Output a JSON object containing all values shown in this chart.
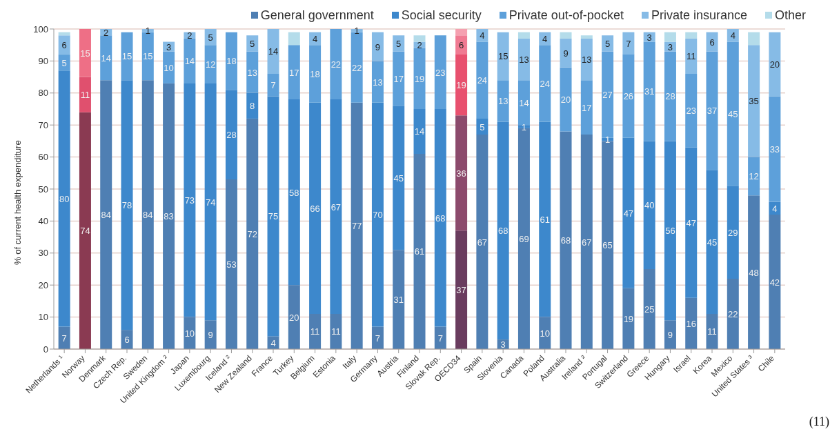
{
  "chart_data": {
    "type": "bar",
    "stacked": true,
    "ylabel": "% of current health expenditure",
    "legend": "top",
    "grid": "y",
    "ylim": [
      0,
      100
    ],
    "yticks": [
      0,
      10,
      20,
      30,
      40,
      50,
      60,
      70,
      80,
      90,
      100
    ],
    "annotations": [
      "(11)"
    ],
    "categories": [
      "Netherlands ¹",
      "Norway",
      "Denmark",
      "Czech Rep.",
      "Sweden",
      "United Kingdom ²",
      "Japan",
      "Luxembourg",
      "Iceland ²",
      "New Zealand",
      "France",
      "Turkey",
      "Belgium",
      "Estonia",
      "Italy",
      "Germany",
      "Austria",
      "Finland",
      "Slovak Rep.",
      "OECD34",
      "Spain",
      "Slovenia",
      "Canada",
      "Poland",
      "Australia",
      "Ireland ²",
      "Portugal",
      "Switzerland",
      "Greece",
      "Hungary",
      "Israel",
      "Korea",
      "Mexico",
      "United States ³",
      "Chile"
    ],
    "series": [
      {
        "name": "General government",
        "color": "#4f7fb3",
        "colors": [
          "#4f7fb3",
          "#8a3a52",
          "#4f7fb3",
          "#4f7fb3",
          "#4f7fb3",
          "#4f7fb3",
          "#4f7fb3",
          "#4f7fb3",
          "#4f7fb3",
          "#4f7fb3",
          "#4f7fb3",
          "#4f7fb3",
          "#4f7fb3",
          "#4f7fb3",
          "#4f7fb3",
          "#4f7fb3",
          "#4f7fb3",
          "#4f7fb3",
          "#4f7fb3",
          "#6a3c5e",
          "#4f7fb3",
          "#4f7fb3",
          "#4f7fb3",
          "#4f7fb3",
          "#4f7fb3",
          "#4f7fb3",
          "#4f7fb3",
          "#4f7fb3",
          "#4f7fb3",
          "#4f7fb3",
          "#4f7fb3",
          "#4f7fb3",
          "#4f7fb3",
          "#4f7fb3",
          "#4f7fb3"
        ],
        "values": [
          7,
          74,
          84,
          6,
          84,
          83,
          10,
          9,
          53,
          72,
          4,
          20,
          11,
          11,
          77,
          7,
          31,
          61,
          7,
          37,
          67,
          3,
          69,
          10,
          68,
          67,
          65,
          19,
          25,
          9,
          16,
          11,
          22,
          48,
          42
        ],
        "value_labels": [
          "7",
          "74",
          "84",
          "6",
          "84",
          "83",
          "10",
          "9",
          "53",
          "72",
          "4",
          "20",
          "11",
          "11",
          "77",
          "7",
          "31",
          "61",
          "7",
          "37",
          "67",
          "3",
          "69",
          "10",
          "68",
          "67",
          "65",
          "19",
          "25",
          "9",
          "16",
          "11",
          "22",
          "48",
          "42"
        ]
      },
      {
        "name": "Social security",
        "color": "#3d88cc",
        "colors": [
          "#3d88cc",
          "#e0506e",
          "#3d88cc",
          "#3d88cc",
          "#3d88cc",
          "#3d88cc",
          "#3d88cc",
          "#3d88cc",
          "#3d88cc",
          "#3d88cc",
          "#3d88cc",
          "#3d88cc",
          "#3d88cc",
          "#3d88cc",
          "#3d88cc",
          "#3d88cc",
          "#3d88cc",
          "#3d88cc",
          "#3d88cc",
          "#8c4a6c",
          "#3d88cc",
          "#3d88cc",
          "#3d88cc",
          "#3d88cc",
          "#3d88cc",
          "#3d88cc",
          "#3d88cc",
          "#3d88cc",
          "#3d88cc",
          "#3d88cc",
          "#3d88cc",
          "#3d88cc",
          "#3d88cc",
          "#3d88cc",
          "#3d88cc"
        ],
        "values": [
          80,
          11,
          null,
          78,
          null,
          null,
          73,
          74,
          28,
          8,
          75,
          58,
          66,
          67,
          null,
          70,
          45,
          14,
          68,
          36,
          5,
          68,
          1,
          61,
          null,
          null,
          1,
          47,
          40,
          56,
          47,
          45,
          29,
          null,
          4
        ],
        "value_labels": [
          "80",
          "11",
          null,
          "78",
          null,
          null,
          "73",
          "74",
          "28",
          "8",
          "75",
          "58",
          "66",
          "67",
          null,
          "70",
          "45",
          "14",
          "68",
          "36",
          "5",
          "68",
          "1",
          "61",
          null,
          null,
          "1",
          "47",
          "40",
          "56",
          "47",
          "45",
          "29",
          null,
          "4"
        ]
      },
      {
        "name": "Private out-of-pocket",
        "color": "#5da0da",
        "colors": [
          "#5da0da",
          "#ee6f86",
          "#5da0da",
          "#5da0da",
          "#5da0da",
          "#5da0da",
          "#5da0da",
          "#5da0da",
          "#5da0da",
          "#5da0da",
          "#5da0da",
          "#5da0da",
          "#5da0da",
          "#5da0da",
          "#5da0da",
          "#5da0da",
          "#5da0da",
          "#5da0da",
          "#5da0da",
          "#e8506e",
          "#5da0da",
          "#5da0da",
          "#5da0da",
          "#5da0da",
          "#5da0da",
          "#5da0da",
          "#5da0da",
          "#5da0da",
          "#5da0da",
          "#5da0da",
          "#5da0da",
          "#5da0da",
          "#5da0da",
          "#5da0da",
          "#5da0da"
        ],
        "values": [
          5,
          15,
          14,
          15,
          15,
          10,
          14,
          12,
          18,
          13,
          7,
          17,
          18,
          22,
          22,
          13,
          17,
          19,
          23,
          19,
          24,
          13,
          14,
          24,
          20,
          17,
          27,
          26,
          31,
          28,
          23,
          37,
          45,
          12,
          33
        ],
        "value_labels": [
          "5",
          "15",
          "14",
          "15",
          "15",
          "10",
          "14",
          "12",
          "18",
          "13",
          "7",
          "17",
          "18",
          "22",
          "22",
          "13",
          "17",
          "19",
          "23",
          "19",
          "24",
          "13",
          "14",
          "24",
          "20",
          "17",
          "27",
          "26",
          "31",
          "28",
          "23",
          "37",
          "45",
          "12",
          "33"
        ]
      },
      {
        "name": "Private insurance",
        "color": "#86bbe6",
        "colors": [
          "#86bbe6",
          "#f08ea0",
          "#86bbe6",
          "#86bbe6",
          "#86bbe6",
          "#86bbe6",
          "#86bbe6",
          "#86bbe6",
          "#86bbe6",
          "#86bbe6",
          "#86bbe6",
          "#86bbe6",
          "#86bbe6",
          "#86bbe6",
          "#86bbe6",
          "#86bbe6",
          "#86bbe6",
          "#86bbe6",
          "#86bbe6",
          "#f07a92",
          "#86bbe6",
          "#86bbe6",
          "#86bbe6",
          "#86bbe6",
          "#86bbe6",
          "#86bbe6",
          "#86bbe6",
          "#86bbe6",
          "#86bbe6",
          "#86bbe6",
          "#86bbe6",
          "#86bbe6",
          "#86bbe6",
          "#86bbe6",
          "#86bbe6"
        ],
        "values": [
          6,
          null,
          2,
          null,
          1,
          3,
          2,
          5,
          null,
          5,
          14,
          null,
          4,
          null,
          1,
          9,
          5,
          2,
          null,
          6,
          4,
          15,
          13,
          4,
          9,
          13,
          5,
          7,
          3,
          3,
          11,
          6,
          4,
          35,
          20
        ],
        "value_labels": [
          "6",
          null,
          "2",
          null,
          "1",
          "3",
          "2",
          "5",
          null,
          "5",
          "14",
          null,
          "4",
          null,
          "1",
          "9",
          "5",
          "2",
          null,
          "6",
          "4",
          "15",
          "13",
          "4",
          "9",
          "13",
          "5",
          "7",
          "3",
          "3",
          "11",
          "6",
          "4",
          "35",
          "20"
        ]
      },
      {
        "name": "Other",
        "color": "#b4dcea",
        "colors": [
          "#b4dcea",
          "#f5b0bc",
          "#b4dcea",
          "#b4dcea",
          "#b4dcea",
          "#b4dcea",
          "#b4dcea",
          "#b4dcea",
          "#b4dcea",
          "#b4dcea",
          "#b4dcea",
          "#b4dcea",
          "#b4dcea",
          "#b4dcea",
          "#b4dcea",
          "#b4dcea",
          "#b4dcea",
          "#b4dcea",
          "#b4dcea",
          "#f5a0b0",
          "#b4dcea",
          "#b4dcea",
          "#b4dcea",
          "#b4dcea",
          "#b4dcea",
          "#b4dcea",
          "#b4dcea",
          "#b4dcea",
          "#b4dcea",
          "#b4dcea",
          "#b4dcea",
          "#b4dcea",
          "#b4dcea",
          "#b4dcea",
          "#b4dcea"
        ],
        "values": [
          1,
          null,
          null,
          null,
          null,
          null,
          null,
          null,
          null,
          null,
          null,
          4,
          null,
          null,
          null,
          null,
          null,
          2,
          null,
          2,
          null,
          null,
          2,
          null,
          2,
          1,
          null,
          null,
          null,
          3,
          2,
          null,
          null,
          4,
          null
        ],
        "value_labels": [
          null,
          null,
          null,
          null,
          null,
          null,
          null,
          null,
          null,
          null,
          null,
          null,
          null,
          null,
          null,
          null,
          null,
          null,
          null,
          null,
          null,
          null,
          null,
          null,
          null,
          null,
          null,
          null,
          null,
          null,
          null,
          null,
          null,
          null,
          null
        ]
      }
    ]
  }
}
